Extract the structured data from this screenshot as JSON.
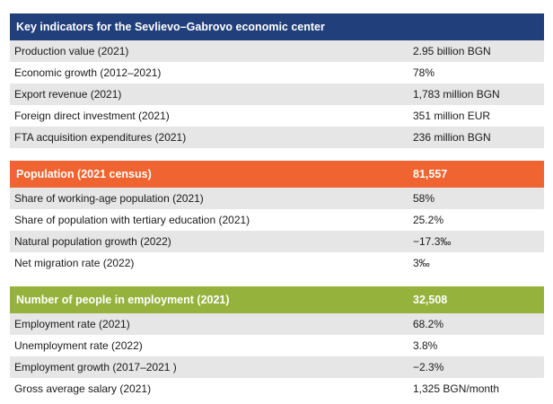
{
  "colors": {
    "blue": "#213f7a",
    "orange": "#ef6430",
    "green": "#95b23c",
    "stripe": "#e6e6e6"
  },
  "sections": [
    {
      "header": {
        "label": "Key indicators for the Sevlievo–Gabrovo economic center",
        "value": ""
      },
      "rows": [
        {
          "label": "Production value (2021)",
          "value": "2.95 billion BGN"
        },
        {
          "label": "Economic growth (2012–2021)",
          "value": "78%"
        },
        {
          "label": "Export revenue (2021)",
          "value": "1,783 million BGN"
        },
        {
          "label": "Foreign direct investment (2021)",
          "value": "351 million EUR"
        },
        {
          "label": "FTA acquisition expenditures (2021)",
          "value": "236 million BGN"
        }
      ]
    },
    {
      "header": {
        "label": "Population (2021 census)",
        "value": "81,557"
      },
      "rows": [
        {
          "label": "Share of working-age population (2021)",
          "value": "58%"
        },
        {
          "label": "Share of population with tertiary education (2021)",
          "value": "25.2%"
        },
        {
          "label": "Natural population growth (2022)",
          "value": "−17.3‰"
        },
        {
          "label": "Net migration rate (2022)",
          "value": "3‰"
        }
      ]
    },
    {
      "header": {
        "label": "Number of people in employment (2021)",
        "value": "32,508"
      },
      "rows": [
        {
          "label": "Employment rate (2021)",
          "value": "68.2%"
        },
        {
          "label": "Unemployment rate (2022)",
          "value": "3.8%"
        },
        {
          "label": "Employment growth (2017–2021 )",
          "value": "−2.3%"
        },
        {
          "label": "Gross average salary (2021)",
          "value": "1,325 BGN/month"
        }
      ]
    }
  ]
}
